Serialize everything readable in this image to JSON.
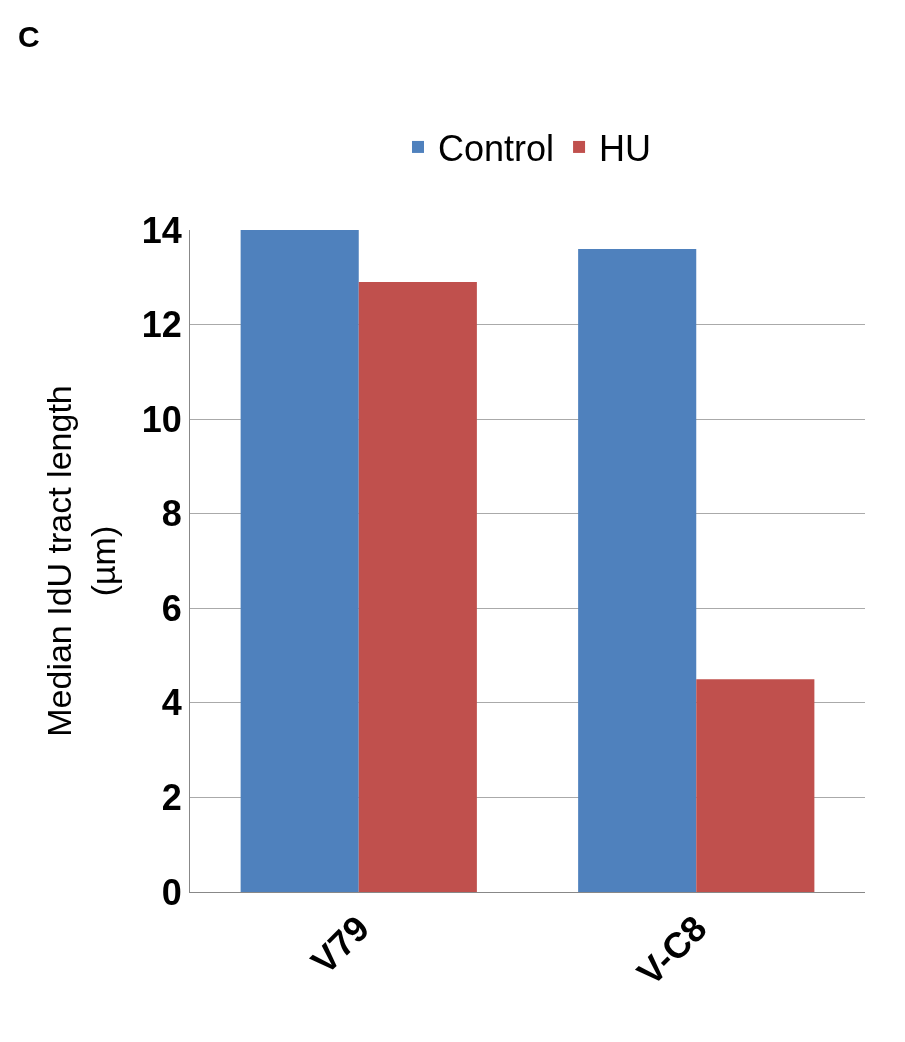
{
  "chart_data": {
    "type": "bar",
    "title": "C",
    "ylabel": "Median IdU tract length\n(µm)",
    "categories": [
      "V79",
      "V-C8"
    ],
    "series": [
      {
        "name": "Control",
        "color": "#4f81bd",
        "values": [
          14.0,
          13.6
        ]
      },
      {
        "name": "HU",
        "color": "#c0504d",
        "values": [
          12.9,
          4.5
        ]
      }
    ],
    "ylim": [
      0,
      14
    ],
    "yticks": [
      0,
      2,
      4,
      6,
      8,
      10,
      12,
      14
    ],
    "grid": "y",
    "legend": "top"
  }
}
